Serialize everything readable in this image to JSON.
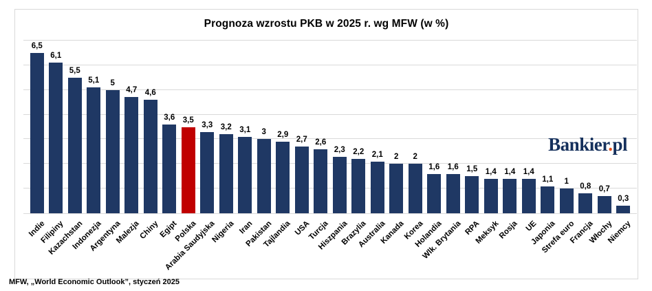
{
  "chart_data": {
    "type": "bar",
    "title": "Prognoza wzrostu PKB w 2025 r. wg MFW (w %)",
    "categories": [
      "Indie",
      "Filipiny",
      "Kazachstan",
      "Indonezja",
      "Argentyna",
      "Malezja",
      "Chiny",
      "Egipt",
      "Polska",
      "Arabia Saudyjska",
      "Nigeria",
      "Iran",
      "Pakistan",
      "Tajlandia",
      "USA",
      "Turcja",
      "Hiszpania",
      "Brazylia",
      "Australia",
      "Kanada",
      "Korea",
      "Holandia",
      "Wlk. Brytania",
      "RPA",
      "Meksyk",
      "Rosja",
      "UE",
      "Japonia",
      "Strefa euro",
      "Francja",
      "Włochy",
      "Niemcy"
    ],
    "values": [
      6.5,
      6.1,
      5.5,
      5.1,
      5,
      4.7,
      4.6,
      3.6,
      3.5,
      3.3,
      3.2,
      3.1,
      3,
      2.9,
      2.7,
      2.6,
      2.3,
      2.2,
      2.1,
      2,
      2,
      1.6,
      1.6,
      1.5,
      1.4,
      1.4,
      1.4,
      1.1,
      1,
      0.8,
      0.7,
      0.3
    ],
    "value_labels": [
      "6,5",
      "6,1",
      "5,5",
      "5,1",
      "5",
      "4,7",
      "4,6",
      "3,6",
      "3,5",
      "3,3",
      "3,2",
      "3,1",
      "3",
      "2,9",
      "2,7",
      "2,6",
      "2,3",
      "2,2",
      "2,1",
      "2",
      "2",
      "1,6",
      "1,6",
      "1,5",
      "1,4",
      "1,4",
      "1,4",
      "1,1",
      "1",
      "0,8",
      "0,7",
      "0,3"
    ],
    "highlighted_category": "Polska",
    "bar_color": "#1f3864",
    "highlight_color": "#c00000",
    "gridline_color": "#d9d9d9",
    "xlabel": "",
    "ylabel": "",
    "ylim": [
      0,
      7
    ],
    "gridline_step": 1,
    "grid": "horizontal",
    "legend_position": "none",
    "x_tick_rotation_deg": 45
  },
  "watermark": {
    "brand": "Bankier",
    "dot": ".",
    "suffix": "pl"
  },
  "footer": {
    "source": "MFW, „World Economic Outlook”, styczeń 2025"
  }
}
